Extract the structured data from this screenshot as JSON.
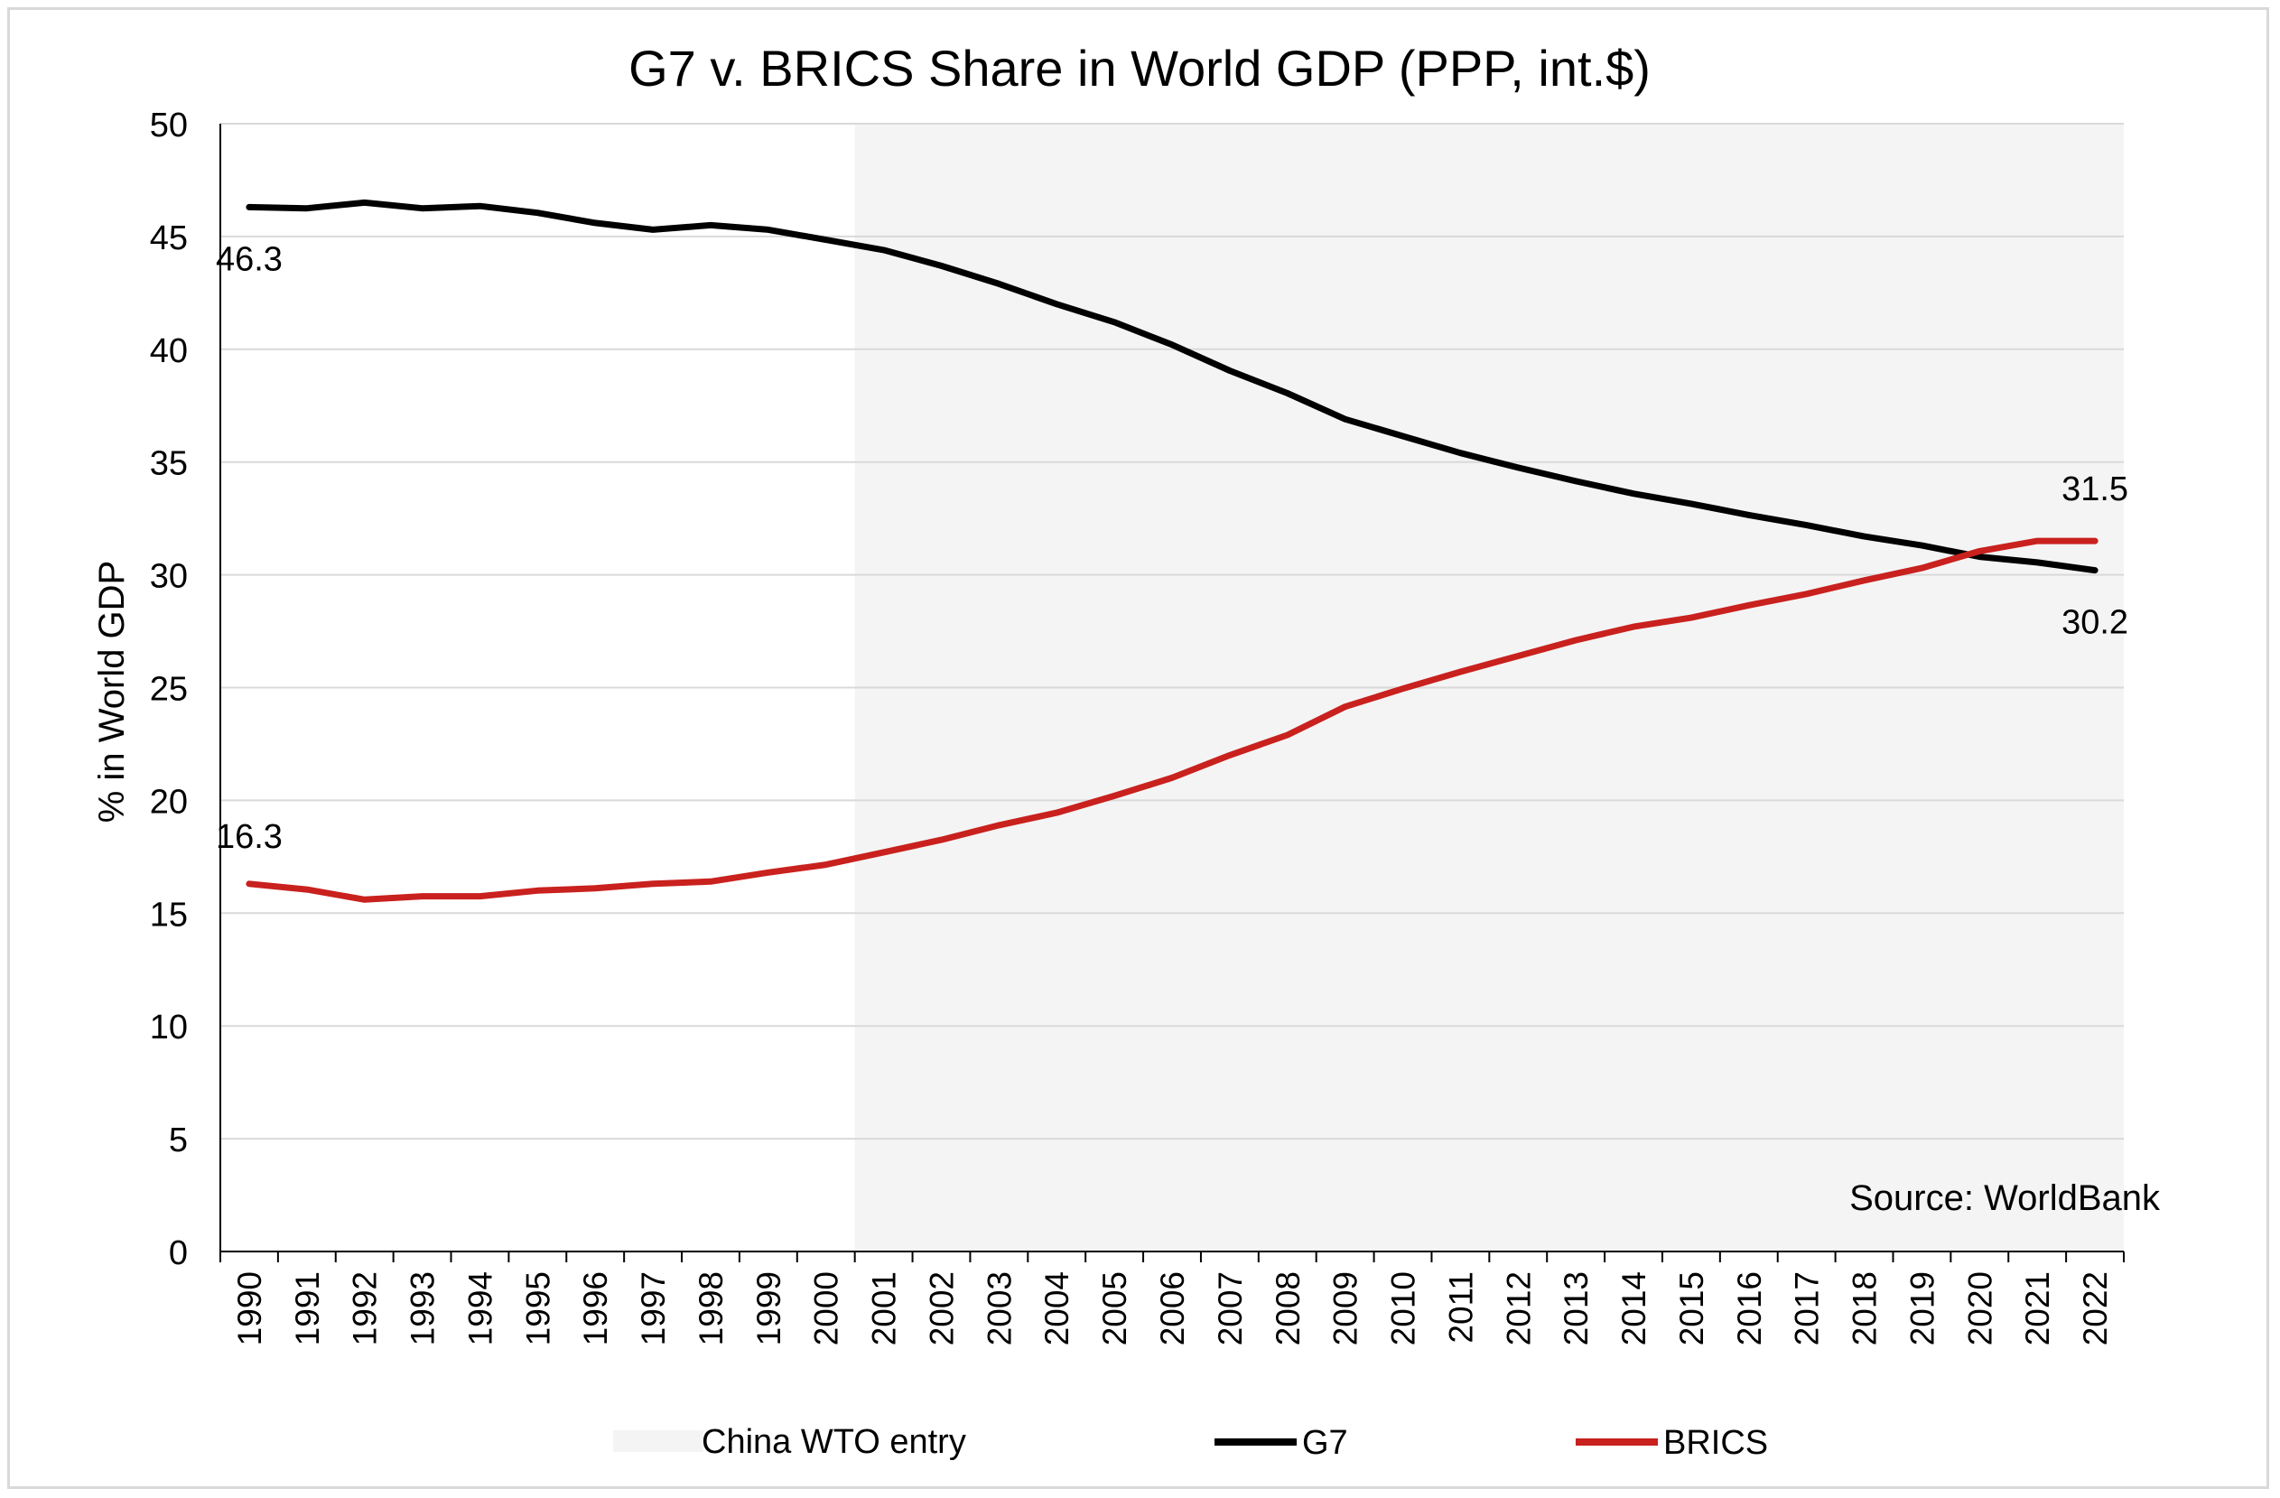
{
  "chart_data": {
    "type": "line",
    "title": "G7 v. BRICS Share in World GDP (PPP, int.$)",
    "xlabel": "",
    "ylabel": "% in World GDP",
    "ylim": [
      0,
      50
    ],
    "yticks": [
      0,
      5,
      10,
      15,
      20,
      25,
      30,
      35,
      40,
      45,
      50
    ],
    "grid": true,
    "legend_position": "bottom",
    "source_note": "Source: WorldBank",
    "categories": [
      "1990",
      "1991",
      "1992",
      "1993",
      "1994",
      "1995",
      "1996",
      "1997",
      "1998",
      "1999",
      "2000",
      "2001",
      "2002",
      "2003",
      "2004",
      "2005",
      "2006",
      "2007",
      "2008",
      "2009",
      "2010",
      "2011",
      "2012",
      "2013",
      "2014",
      "2015",
      "2016",
      "2017",
      "2018",
      "2019",
      "2020",
      "2021",
      "2022"
    ],
    "shaded_region": {
      "name": "China WTO entry",
      "start": "2001",
      "end": "2022",
      "color": "#f4f4f4"
    },
    "series": [
      {
        "name": "G7",
        "color": "#000000",
        "values": [
          46.3,
          46.25,
          46.5,
          46.25,
          46.35,
          46.05,
          45.6,
          45.3,
          45.5,
          45.3,
          44.85,
          44.4,
          43.7,
          42.9,
          42.0,
          41.2,
          40.2,
          39.05,
          38.05,
          36.9,
          36.15,
          35.4,
          34.75,
          34.15,
          33.6,
          33.15,
          32.65,
          32.2,
          31.7,
          31.3,
          30.8,
          30.55,
          30.2
        ],
        "labels": [
          {
            "category": "1990",
            "text": "46.3"
          },
          {
            "category": "2022",
            "text": "30.2"
          }
        ]
      },
      {
        "name": "BRICS",
        "color": "#c9211e",
        "values": [
          16.3,
          16.05,
          15.6,
          15.75,
          15.75,
          16.0,
          16.1,
          16.3,
          16.4,
          16.8,
          17.15,
          17.7,
          18.25,
          18.9,
          19.45,
          20.2,
          21.0,
          22.0,
          22.9,
          24.15,
          24.95,
          25.7,
          26.4,
          27.1,
          27.7,
          28.1,
          28.65,
          29.15,
          29.75,
          30.3,
          31.05,
          31.5,
          31.5
        ],
        "labels": [
          {
            "category": "1990",
            "text": "16.3"
          },
          {
            "category": "2022",
            "text": "31.5"
          }
        ]
      }
    ]
  }
}
